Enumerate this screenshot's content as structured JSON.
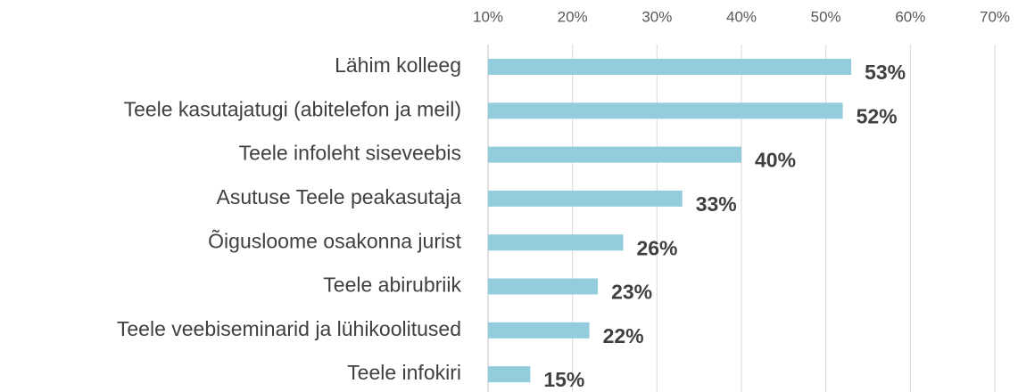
{
  "chart_data": {
    "type": "bar",
    "orientation": "horizontal",
    "categories": [
      "Lähim kolleeg",
      "Teele kasutajatugi (abitelefon ja meil)",
      "Teele infoleht siseveebis",
      "Asutuse Teele peakasutaja",
      "Õigusloome osakonna jurist",
      "Teele abirubriik",
      "Teele veebiseminarid ja lühikoolitused",
      "Teele infokiri"
    ],
    "values": [
      53,
      52,
      40,
      33,
      26,
      23,
      22,
      15
    ],
    "value_labels": [
      "53%",
      "52%",
      "40%",
      "33%",
      "26%",
      "23%",
      "22%",
      "15%"
    ],
    "color": "#93cddd",
    "xlim": [
      10,
      70
    ],
    "xticks": [
      {
        "value": 10,
        "label": "10%"
      },
      {
        "value": 20,
        "label": "20%"
      },
      {
        "value": 30,
        "label": "30%"
      },
      {
        "value": 40,
        "label": "40%"
      },
      {
        "value": 50,
        "label": "50%"
      },
      {
        "value": 60,
        "label": "60%"
      },
      {
        "value": 70,
        "label": "70%"
      }
    ],
    "grid": true
  }
}
